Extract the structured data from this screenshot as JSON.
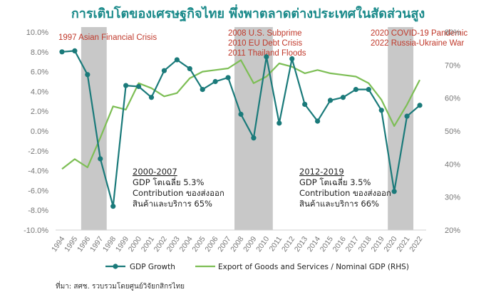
{
  "chart_data": {
    "type": "line",
    "title": "การเติบโตของเศรษฐกิจไทย พึ่งพาตลาดต่างประเทศในสัดส่วนสูง",
    "x": [
      "1994",
      "1995",
      "1996",
      "1997",
      "1998",
      "1999",
      "2000",
      "2001",
      "2002",
      "2003",
      "2004",
      "2005",
      "2006",
      "2007",
      "2008",
      "2009",
      "2010",
      "2011",
      "2012",
      "2013",
      "2014",
      "2015",
      "2016",
      "2017",
      "2018",
      "2019",
      "2020",
      "2021",
      "2022"
    ],
    "series": [
      {
        "name": "GDP Growth",
        "axis": "left",
        "color": "#1a7a7a",
        "values": [
          8.0,
          8.1,
          5.7,
          -2.8,
          -7.6,
          4.6,
          4.5,
          3.4,
          6.1,
          7.2,
          6.3,
          4.2,
          5.0,
          5.4,
          1.7,
          -0.7,
          7.5,
          0.8,
          7.3,
          2.7,
          1.0,
          3.1,
          3.4,
          4.2,
          4.2,
          2.1,
          -6.1,
          1.5,
          2.6
        ]
      },
      {
        "name": "Export of Goods and Services / Nominal GDP (RHS)",
        "axis": "right",
        "color": "#7dbe55",
        "values": [
          38.5,
          41.5,
          39.0,
          48.0,
          57.5,
          56.5,
          64.5,
          63.0,
          60.5,
          61.5,
          66.0,
          68.0,
          68.5,
          69.0,
          71.5,
          64.5,
          66.5,
          70.5,
          69.5,
          67.5,
          68.5,
          67.5,
          67.0,
          66.5,
          64.5,
          59.5,
          51.5,
          58.0,
          65.5
        ]
      }
    ],
    "y_left": {
      "range": [
        -10,
        10
      ],
      "ticks": [
        "10.0%",
        "8.0%",
        "6.0%",
        "4.0%",
        "2.0%",
        "0.0%",
        "-2.0%",
        "-4.0%",
        "-6.0%",
        "-8.0%",
        "-10.0%"
      ]
    },
    "y_right": {
      "range": [
        20,
        80
      ],
      "ticks": [
        "80%",
        "70%",
        "60%",
        "50%",
        "40%",
        "30%",
        "20%"
      ]
    },
    "shaded_periods": [
      {
        "from": "1996",
        "to": "1998",
        "labels": [
          "1997 Asian Financial Crisis"
        ]
      },
      {
        "from": "2008",
        "to": "2011",
        "labels": [
          "2008 U.S. Subprime",
          "2010 EU Debt Crisis",
          "2011 Thailand Floods"
        ]
      },
      {
        "from": "2020",
        "to": "2022",
        "labels": [
          "2020 COVID-19 Pandemic",
          "2022 Russia-Ukraine War"
        ]
      }
    ],
    "annotations": [
      {
        "lines": [
          "2000-2007",
          "GDP โตเฉลี่ย 5.3%",
          "Contribution ของส่งออก",
          "สินค้าและบริการ 65%"
        ]
      },
      {
        "lines": [
          "2012-2019",
          "GDP โตเฉลี่ย 3.5%",
          "Contribution ของส่งออก",
          "สินค้าและบริการ 66%"
        ]
      }
    ],
    "legend_position": "bottom",
    "grid": false,
    "source": "ที่มา: สศช. รวบรวมโดยศูนย์วิจัยกสิกรไทย",
    "colors": {
      "title": "#1a8a8a",
      "events": "#c0392b",
      "shade": "#c8c8c8"
    }
  }
}
